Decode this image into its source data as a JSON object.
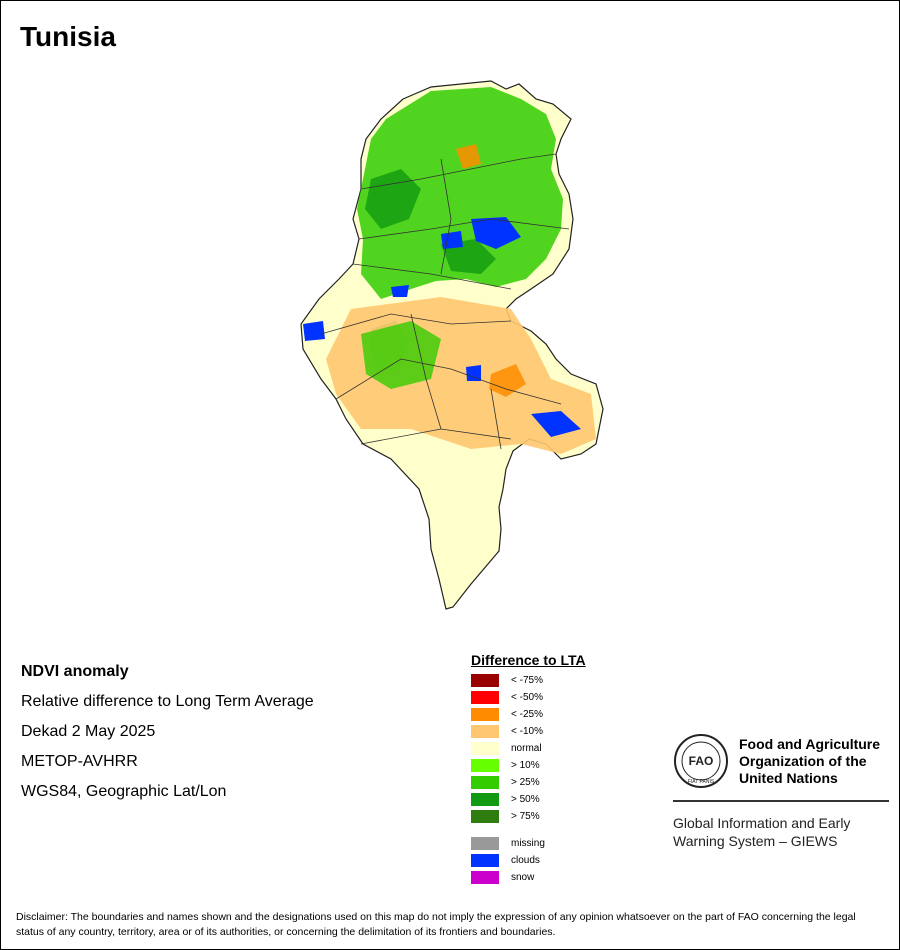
{
  "title": "Tunisia",
  "info": {
    "heading": "NDVI anomaly",
    "line1": "Relative difference to Long Term Average",
    "line2": "Dekad 2 May 2025",
    "line3": "METOP-AVHRR",
    "line4": "WGS84, Geographic Lat/Lon"
  },
  "legend": {
    "title": "Difference to LTA",
    "items": [
      {
        "label": "< -75%",
        "color": "#990000"
      },
      {
        "label": "< -50%",
        "color": "#ff0000"
      },
      {
        "label": "< -25%",
        "color": "#ff8c00"
      },
      {
        "label": "< -10%",
        "color": "#ffc870"
      },
      {
        "label": "normal",
        "color": "#ffffcc"
      },
      {
        "label": "> 10%",
        "color": "#66ff00"
      },
      {
        "label": "> 25%",
        "color": "#33cc00"
      },
      {
        "label": "> 50%",
        "color": "#119911"
      },
      {
        "label": "> 75%",
        "color": "#2e7d0e"
      }
    ],
    "extra": [
      {
        "label": "missing",
        "color": "#999999"
      },
      {
        "label": "clouds",
        "color": "#0033ff"
      },
      {
        "label": "snow",
        "color": "#cc00cc"
      }
    ]
  },
  "fao": {
    "logo_text": "FAO",
    "logo_motto": "FIAT PANIS",
    "name_line1": "Food and Agriculture",
    "name_line2": "Organization of the",
    "name_line3": "United Nations",
    "giews_line1": "Global Information and Early",
    "giews_line2": "Warning System – GIEWS"
  },
  "disclaimer": "Disclaimer: The boundaries and names shown and the designations used on this map do not imply the expression of any opinion whatsoever on the part of FAO concerning the legal status of any country, territory, area or of its authorities, or concerning the delimitation of its frontiers and boundaries."
}
